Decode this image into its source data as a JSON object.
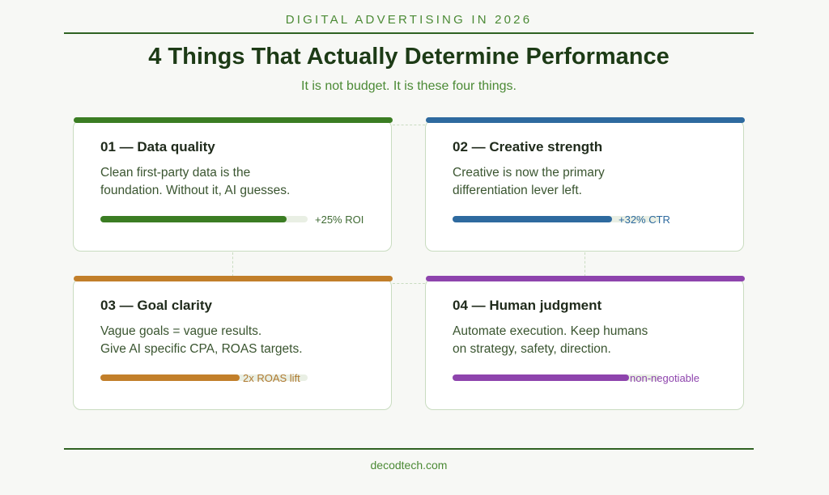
{
  "header": {
    "eyebrow": "DIGITAL ADVERTISING IN 2026",
    "title": "4 Things That Actually Determine Performance",
    "subtitle": "It is not budget. It is these four things."
  },
  "cards": [
    {
      "heading": "01 — Data quality",
      "desc_line1": "Clean first-party data is the",
      "desc_line2": "foundation. Without it, AI guesses.",
      "metric": "+25% ROI",
      "progress": 0.9,
      "color": "#3b7d23",
      "metric_color": "#3f6a33"
    },
    {
      "heading": "02 — Creative strength",
      "desc_line1": "Creative is now the primary",
      "desc_line2": "differentiation lever left.",
      "metric": "+32% CTR",
      "progress": 0.77,
      "color": "#2e6a9f",
      "metric_color": "#2e6a9f"
    },
    {
      "heading": "03 — Goal clarity",
      "desc_line1": "Vague goals = vague results.",
      "desc_line2": "Give AI specific CPA, ROAS targets.",
      "metric": "2x ROAS lift",
      "progress": 0.67,
      "color": "#c27f2a",
      "metric_color": "#b07a31"
    },
    {
      "heading": "04 — Human judgment",
      "desc_line1": "Automate execution. Keep humans",
      "desc_line2": "on strategy, safety, direction.",
      "metric": "non-negotiable",
      "progress": 0.85,
      "color": "#8e44ad",
      "metric_color": "#8e44ad"
    }
  ],
  "footer": {
    "site": "decodtech.com"
  }
}
